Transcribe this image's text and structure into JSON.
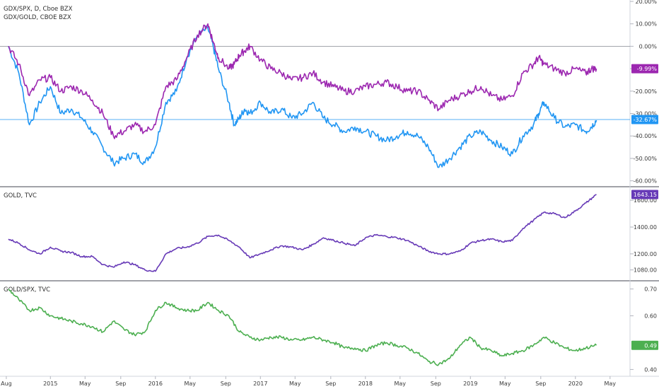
{
  "chart_data": [
    {
      "type": "line",
      "pane": "top",
      "title": "GDX/SPX, D, Cboe BZX",
      "subtitle": "GDX/GOLD, CBOE BZX",
      "ylim": [
        -62,
        20
      ],
      "yticks": [
        "20.00%",
        "10.00%",
        "0.00%",
        "-10.00%",
        "-20.00%",
        "-30.00%",
        "-40.00%",
        "-50.00%",
        "-60.00%"
      ],
      "ytick_values": [
        20,
        10,
        0,
        -10,
        -20,
        -30,
        -40,
        -50,
        -60
      ],
      "zero_line": 0,
      "series": [
        {
          "name": "GDX/SPX",
          "color": "#2196f3",
          "last_label": "-32.67%",
          "last_value": -32.67,
          "x": [
            2014.6,
            2014.7,
            2014.8,
            2014.9,
            2015.0,
            2015.1,
            2015.2,
            2015.3,
            2015.4,
            2015.5,
            2015.6,
            2015.7,
            2015.8,
            2015.9,
            2016.0,
            2016.1,
            2016.2,
            2016.3,
            2016.4,
            2016.5,
            2016.55,
            2016.6,
            2016.7,
            2016.75,
            2016.8,
            2016.85,
            2016.9,
            2017.0,
            2017.1,
            2017.2,
            2017.3,
            2017.4,
            2017.5,
            2017.6,
            2017.7,
            2017.8,
            2017.9,
            2018.0,
            2018.1,
            2018.2,
            2018.3,
            2018.4,
            2018.5,
            2018.6,
            2018.7,
            2018.8,
            2018.9,
            2019.0,
            2019.1,
            2019.2,
            2019.3,
            2019.4,
            2019.5,
            2019.6,
            2019.65,
            2019.7,
            2019.8,
            2019.9,
            2020.0,
            2020.1,
            2020.15,
            2020.2
          ],
          "values": [
            0,
            -12,
            -35,
            -25,
            -18,
            -30,
            -28,
            -32,
            -38,
            -45,
            -52,
            -50,
            -48,
            -52,
            -45,
            -25,
            -20,
            -5,
            5,
            8,
            0,
            -10,
            -25,
            -35,
            -32,
            -28,
            -30,
            -25,
            -30,
            -28,
            -32,
            -30,
            -25,
            -32,
            -35,
            -38,
            -36,
            -38,
            -40,
            -42,
            -40,
            -38,
            -40,
            -45,
            -54,
            -50,
            -45,
            -40,
            -38,
            -42,
            -45,
            -48,
            -40,
            -35,
            -30,
            -25,
            -32,
            -36,
            -35,
            -38,
            -36,
            -33
          ]
        },
        {
          "name": "GDX/GOLD",
          "color": "#9c27b0",
          "last_label": "-9.99%",
          "last_value": -9.99,
          "x": [
            2014.6,
            2014.7,
            2014.8,
            2014.9,
            2015.0,
            2015.1,
            2015.2,
            2015.3,
            2015.4,
            2015.5,
            2015.6,
            2015.7,
            2015.8,
            2015.9,
            2016.0,
            2016.1,
            2016.2,
            2016.3,
            2016.4,
            2016.5,
            2016.55,
            2016.6,
            2016.7,
            2016.75,
            2016.8,
            2016.85,
            2016.9,
            2017.0,
            2017.1,
            2017.2,
            2017.3,
            2017.4,
            2017.5,
            2017.6,
            2017.7,
            2017.8,
            2017.9,
            2018.0,
            2018.1,
            2018.2,
            2018.3,
            2018.4,
            2018.5,
            2018.6,
            2018.7,
            2018.8,
            2018.9,
            2019.0,
            2019.1,
            2019.2,
            2019.3,
            2019.4,
            2019.5,
            2019.6,
            2019.65,
            2019.7,
            2019.8,
            2019.9,
            2020.0,
            2020.1,
            2020.15,
            2020.2
          ],
          "values": [
            0,
            -8,
            -22,
            -15,
            -14,
            -20,
            -18,
            -20,
            -24,
            -30,
            -40,
            -38,
            -35,
            -38,
            -35,
            -18,
            -15,
            -5,
            5,
            10,
            2,
            -5,
            -10,
            -8,
            -4,
            -2,
            0,
            -6,
            -10,
            -12,
            -15,
            -14,
            -12,
            -16,
            -18,
            -20,
            -20,
            -18,
            -17,
            -16,
            -18,
            -20,
            -20,
            -24,
            -28,
            -24,
            -22,
            -20,
            -18,
            -22,
            -24,
            -22,
            -12,
            -8,
            -5,
            -8,
            -10,
            -12,
            -10,
            -12,
            -10,
            -10
          ]
        }
      ]
    },
    {
      "type": "line",
      "pane": "middle",
      "title": "GOLD, TVC",
      "ylim": [
        1020,
        1680
      ],
      "yticks": [
        "1600.00",
        "1400.00",
        "1200.00",
        "1080.00"
      ],
      "ytick_values": [
        1600,
        1400,
        1200,
        1080
      ],
      "series": [
        {
          "name": "GOLD",
          "color": "#673ab7",
          "last_label": "1643.15",
          "last_value": 1643.15,
          "x": [
            2014.6,
            2014.7,
            2014.8,
            2014.9,
            2015.0,
            2015.1,
            2015.2,
            2015.3,
            2015.4,
            2015.5,
            2015.6,
            2015.7,
            2015.8,
            2015.9,
            2016.0,
            2016.1,
            2016.2,
            2016.3,
            2016.4,
            2016.5,
            2016.6,
            2016.7,
            2016.8,
            2016.9,
            2017.0,
            2017.1,
            2017.2,
            2017.3,
            2017.4,
            2017.5,
            2017.6,
            2017.7,
            2017.8,
            2017.9,
            2018.0,
            2018.1,
            2018.2,
            2018.3,
            2018.4,
            2018.5,
            2018.6,
            2018.7,
            2018.8,
            2018.9,
            2019.0,
            2019.1,
            2019.2,
            2019.3,
            2019.4,
            2019.5,
            2019.6,
            2019.7,
            2019.8,
            2019.9,
            2020.0,
            2020.1,
            2020.2
          ],
          "values": [
            1310,
            1280,
            1230,
            1200,
            1250,
            1220,
            1210,
            1180,
            1180,
            1120,
            1100,
            1140,
            1120,
            1080,
            1070,
            1200,
            1240,
            1250,
            1280,
            1330,
            1340,
            1300,
            1250,
            1170,
            1200,
            1230,
            1260,
            1250,
            1230,
            1270,
            1320,
            1300,
            1280,
            1260,
            1320,
            1340,
            1330,
            1320,
            1300,
            1260,
            1220,
            1200,
            1200,
            1220,
            1280,
            1300,
            1310,
            1290,
            1300,
            1390,
            1450,
            1510,
            1500,
            1470,
            1520,
            1580,
            1643
          ]
        }
      ]
    },
    {
      "type": "line",
      "pane": "bottom",
      "title": "GOLD/SPX, TVC",
      "ylim": [
        0.38,
        0.72
      ],
      "yticks": [
        "0.70",
        "0.60",
        "0.40"
      ],
      "ytick_values": [
        0.7,
        0.6,
        0.4
      ],
      "xticks": [
        "Aug",
        "2015",
        "May",
        "Sep",
        "2016",
        "May",
        "Sep",
        "2017",
        "May",
        "Sep",
        "2018",
        "May",
        "Sep",
        "2019",
        "May",
        "Sep",
        "2020",
        "May"
      ],
      "xtick_values": [
        2014.58,
        2015.0,
        2015.33,
        2015.67,
        2016.0,
        2016.33,
        2016.67,
        2017.0,
        2017.33,
        2017.67,
        2018.0,
        2018.33,
        2018.67,
        2019.0,
        2019.33,
        2019.67,
        2020.0,
        2020.33
      ],
      "series": [
        {
          "name": "GOLD/SPX",
          "color": "#4caf50",
          "last_label": "0.49",
          "last_value": 0.49,
          "x": [
            2014.6,
            2014.7,
            2014.8,
            2014.9,
            2015.0,
            2015.1,
            2015.2,
            2015.3,
            2015.4,
            2015.5,
            2015.6,
            2015.7,
            2015.8,
            2015.9,
            2016.0,
            2016.1,
            2016.2,
            2016.3,
            2016.4,
            2016.5,
            2016.6,
            2016.7,
            2016.8,
            2016.9,
            2017.0,
            2017.1,
            2017.2,
            2017.3,
            2017.4,
            2017.5,
            2017.6,
            2017.7,
            2017.8,
            2017.9,
            2018.0,
            2018.1,
            2018.2,
            2018.3,
            2018.4,
            2018.5,
            2018.6,
            2018.7,
            2018.8,
            2018.9,
            2019.0,
            2019.1,
            2019.2,
            2019.3,
            2019.4,
            2019.5,
            2019.6,
            2019.7,
            2019.8,
            2019.9,
            2020.0,
            2020.1,
            2020.2
          ],
          "values": [
            0.7,
            0.66,
            0.62,
            0.63,
            0.6,
            0.59,
            0.58,
            0.57,
            0.56,
            0.54,
            0.58,
            0.55,
            0.53,
            0.54,
            0.62,
            0.65,
            0.63,
            0.62,
            0.62,
            0.65,
            0.62,
            0.6,
            0.54,
            0.52,
            0.51,
            0.52,
            0.52,
            0.51,
            0.51,
            0.52,
            0.51,
            0.5,
            0.48,
            0.48,
            0.47,
            0.49,
            0.5,
            0.49,
            0.48,
            0.46,
            0.43,
            0.42,
            0.44,
            0.49,
            0.52,
            0.48,
            0.47,
            0.45,
            0.46,
            0.47,
            0.49,
            0.52,
            0.5,
            0.48,
            0.47,
            0.48,
            0.49
          ]
        }
      ]
    }
  ]
}
